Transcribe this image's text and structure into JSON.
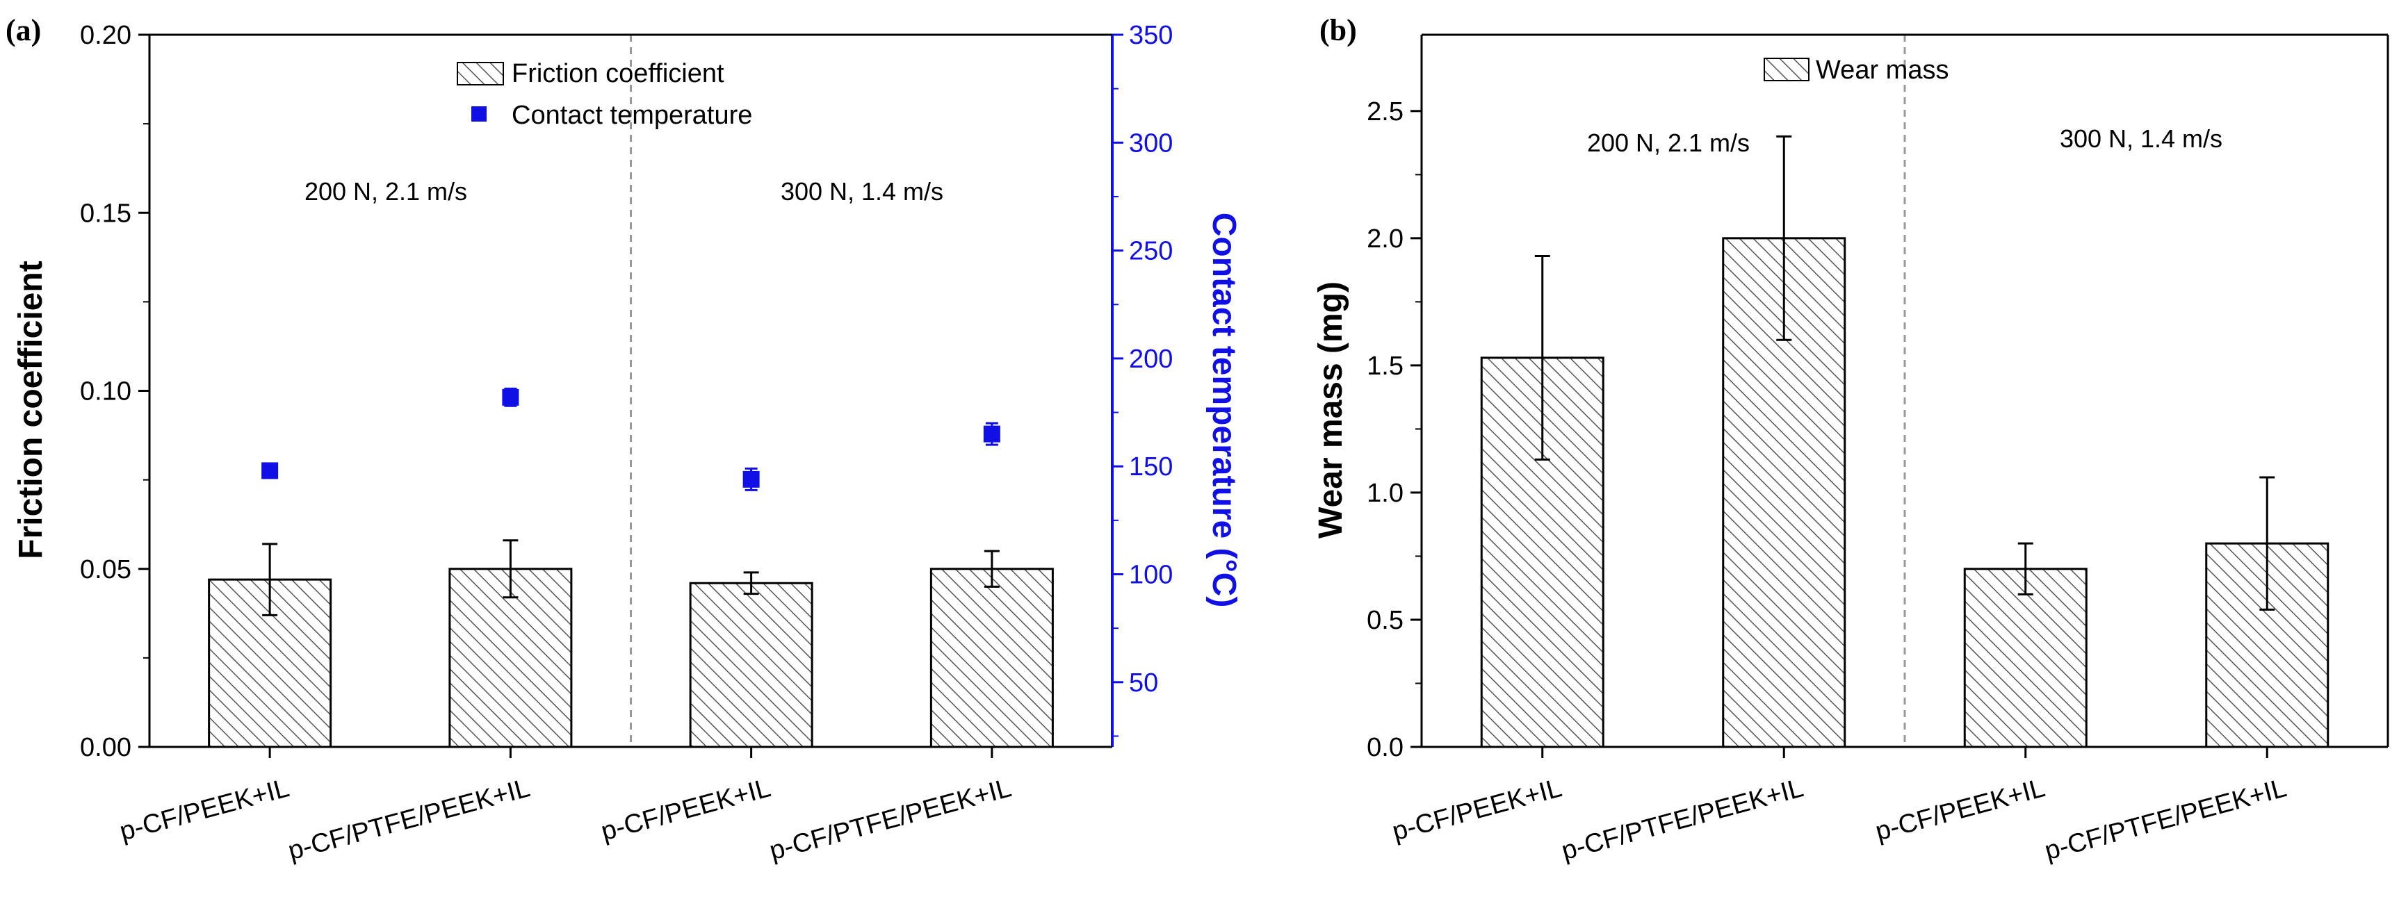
{
  "colors": {
    "axis": "#000000",
    "temperature": "#1010e6",
    "bar_fill": "#ffffff",
    "hatch": "#555555",
    "divider": "#999999"
  },
  "chart_data": [
    {
      "panel_label": "(a)",
      "type": "bar",
      "categories": [
        "p-CF/PEEK+IL",
        "p-CF/PTFE/PEEK+IL",
        "p-CF/PEEK+IL",
        "p-CF/PTFE/PEEK+IL"
      ],
      "condition_labels": [
        "200 N, 2.1 m/s",
        "300 N, 1.4 m/s"
      ],
      "series": [
        {
          "name": "Friction coefficient",
          "type": "bar",
          "axis": "left",
          "values": [
            0.047,
            0.05,
            0.046,
            0.05
          ],
          "errors": [
            0.01,
            0.008,
            0.003,
            0.005
          ]
        },
        {
          "name": "Contact temperature",
          "type": "scatter",
          "axis": "right",
          "values": [
            148,
            182,
            144,
            165
          ],
          "errors": [
            3,
            4,
            5,
            5
          ]
        }
      ],
      "ylabel": "Friction coefficient",
      "y2label": "Contact temperature (°C)",
      "ylim": [
        0,
        0.2
      ],
      "y2lim": [
        20,
        350
      ],
      "yticks": [
        "0.00",
        "0.05",
        "0.10",
        "0.15",
        "0.20"
      ],
      "y2ticks": [
        "50",
        "100",
        "150",
        "200",
        "250",
        "300",
        "350"
      ],
      "legend_position": "top-center"
    },
    {
      "panel_label": "(b)",
      "type": "bar",
      "categories": [
        "p-CF/PEEK+IL",
        "p-CF/PTFE/PEEK+IL",
        "p-CF/PEEK+IL",
        "p-CF/PTFE/PEEK+IL"
      ],
      "condition_labels": [
        "200 N, 2.1 m/s",
        "300 N, 1.4 m/s"
      ],
      "series": [
        {
          "name": "Wear mass",
          "type": "bar",
          "values": [
            1.53,
            2.0,
            0.7,
            0.8
          ],
          "errors": [
            0.4,
            0.4,
            0.1,
            0.26
          ]
        }
      ],
      "ylabel": "Wear mass (mg)",
      "ylim": [
        0,
        2.8
      ],
      "yticks": [
        "0.0",
        "0.5",
        "1.0",
        "1.5",
        "2.0",
        "2.5"
      ],
      "legend_position": "top-center"
    }
  ]
}
